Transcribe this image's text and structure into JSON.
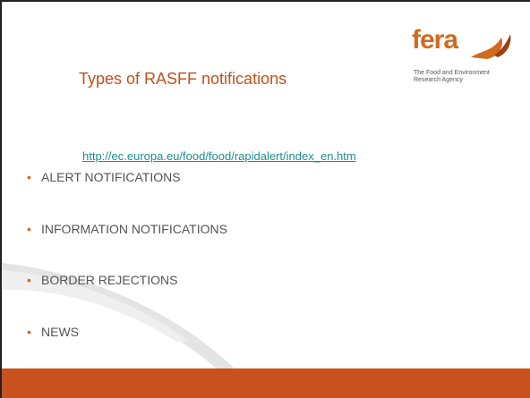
{
  "title": "Types of RASFF notifications",
  "logo": {
    "name": "fera",
    "tagline": [
      "The Food and Environment",
      "Research Agency"
    ]
  },
  "link": "http://ec.europa.eu/food/food/rapidalert/index_en.htm",
  "bullets": [
    "ALERT NOTIFICATIONS",
    "INFORMATION NOTIFICATIONS",
    "BORDER REJECTIONS",
    "NEWS"
  ]
}
